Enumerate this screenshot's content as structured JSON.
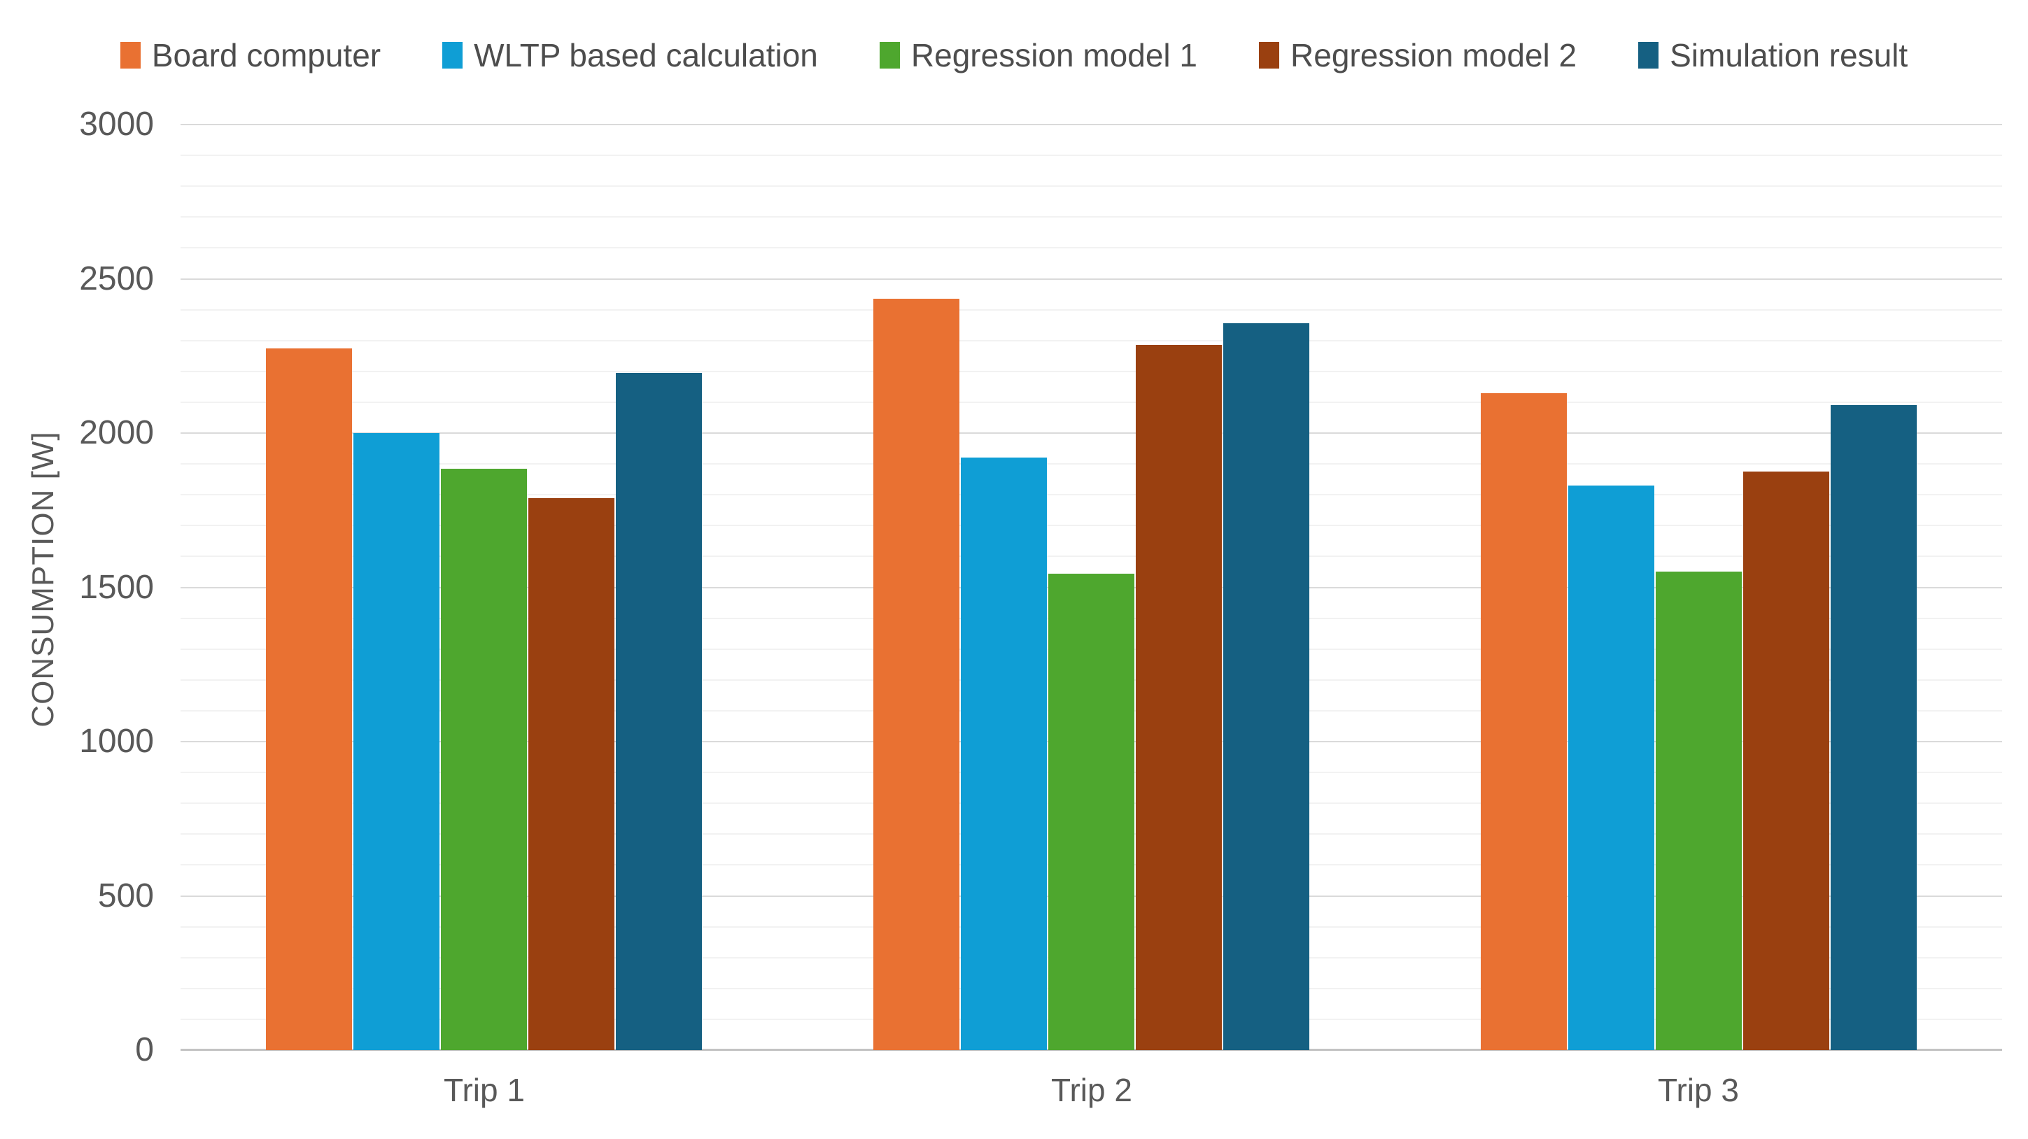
{
  "chart_data": {
    "type": "bar",
    "title": "",
    "categories": [
      "Trip 1",
      "Trip 2",
      "Trip 3"
    ],
    "series": [
      {
        "name": "Board computer",
        "color": "#E97132",
        "values": [
          2275,
          2435,
          2130
        ]
      },
      {
        "name": "WLTP based calculation",
        "color": "#0F9ED5",
        "values": [
          2000,
          1920,
          1830
        ]
      },
      {
        "name": "Regression model 1",
        "color": "#4EA72E",
        "values": [
          1885,
          1545,
          1550
        ]
      },
      {
        "name": "Regression model 2",
        "color": "#9A4010",
        "values": [
          1790,
          2285,
          1875
        ]
      },
      {
        "name": "Simulation result",
        "color": "#156082",
        "values": [
          2195,
          2355,
          2090
        ]
      }
    ],
    "ylabel": "CONSUMPTION [W]",
    "xlabel": "",
    "ylim": [
      0,
      3000
    ],
    "y_major_step": 500,
    "y_minor_step": 100,
    "y_tick_labels": [
      "0",
      "500",
      "1000",
      "1500",
      "2000",
      "2500",
      "3000"
    ],
    "legend_position": "top",
    "grid": "horizontal major + minor",
    "grid_colors": {
      "minor": "#f2f2f2",
      "major": "#dadada",
      "baseline": "#c3c3c3"
    },
    "text_colors": {
      "axis": "#595959",
      "legend": "#4d4d4d"
    }
  }
}
